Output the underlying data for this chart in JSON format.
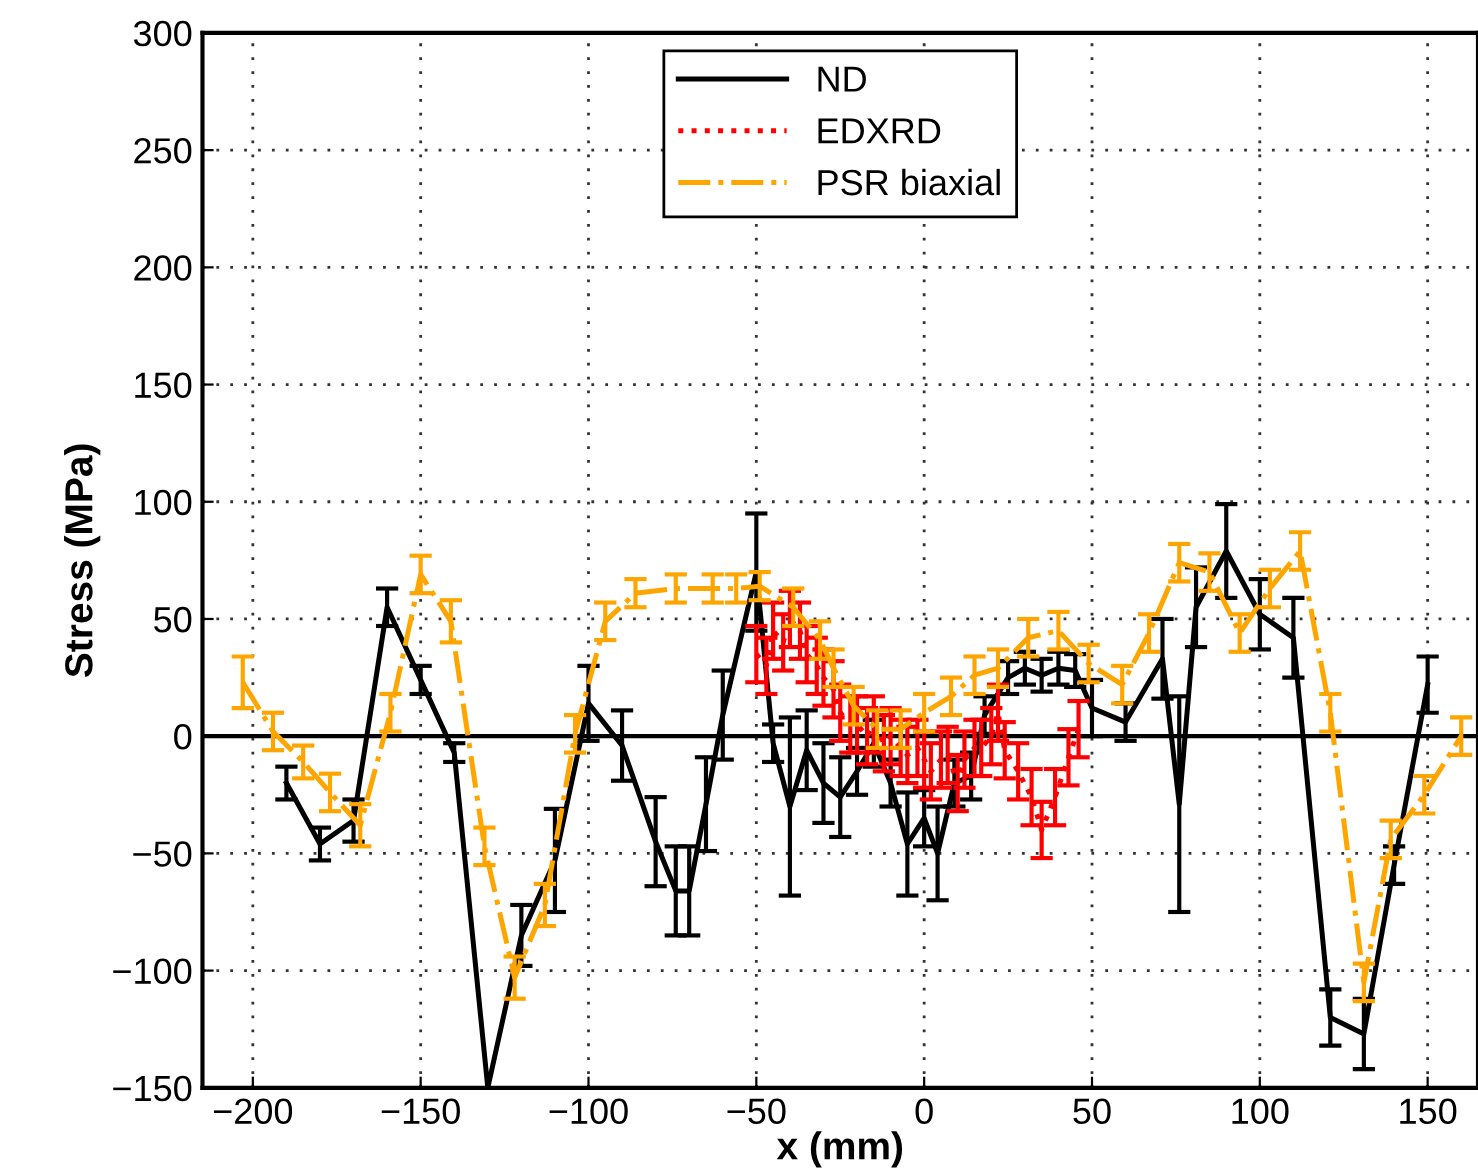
{
  "chart_data": {
    "type": "line",
    "xlabel": "x (mm)",
    "ylabel": "Stress (MPa)",
    "xlim": [
      -215,
      165
    ],
    "xticks": [
      -200,
      -150,
      -100,
      -50,
      0,
      50,
      100,
      150
    ],
    "ylim": [
      -150,
      300
    ],
    "yticks": [
      -150,
      -100,
      -50,
      0,
      50,
      100,
      150,
      200,
      250,
      300
    ],
    "grid": true,
    "legend": "top",
    "marker": "none",
    "ref_lines": [
      {
        "axis": "y",
        "value": 0,
        "color": "#000000",
        "line_style": "solid"
      }
    ],
    "series": [
      {
        "name": "ND",
        "color": "#000000",
        "line_style": "solid",
        "x": [
          -190,
          -180,
          -170,
          -160,
          -150,
          -140,
          -130,
          -120,
          -110,
          -100,
          -90,
          -80,
          -74,
          -70,
          -65,
          -60,
          -50,
          -45,
          -40,
          -35,
          -30,
          -25,
          -20,
          -15,
          -10,
          -5,
          0,
          4,
          9,
          14,
          18,
          25,
          30,
          35,
          40,
          45,
          50,
          60,
          71,
          76,
          81,
          90,
          100,
          110,
          121,
          131,
          140,
          150
        ],
        "values": [
          -20,
          -46,
          -36,
          55,
          24,
          -7,
          -150,
          -85,
          -53,
          14,
          -4,
          -45,
          -66,
          -66,
          -29,
          9,
          70,
          -3,
          -30,
          -6,
          -20,
          -26,
          -15,
          -3,
          -20,
          -46,
          -35,
          -50,
          -20,
          -17,
          9,
          25,
          29,
          26,
          29,
          28,
          12,
          6,
          33,
          -29,
          55,
          79,
          52,
          42,
          -120,
          -127,
          -55,
          22
        ],
        "errors": [
          7,
          7,
          9,
          8,
          6,
          4,
          null,
          13,
          22,
          16,
          15,
          19,
          19,
          19,
          20,
          19,
          25,
          8,
          38,
          17,
          17,
          17,
          10,
          10,
          10,
          22,
          12,
          20,
          10,
          10,
          8,
          7,
          7,
          7,
          7,
          7,
          12,
          8,
          17,
          46,
          17,
          20,
          15,
          17,
          12,
          15,
          8,
          12
        ]
      },
      {
        "name": "EDXRD",
        "color": "#ff0000",
        "line_style": "dotted",
        "x": [
          -50,
          -47,
          -45,
          -42,
          -40,
          -37,
          -35,
          -32,
          -30,
          -27,
          -25,
          -22,
          -20,
          -17,
          -15,
          -12,
          -10,
          -7,
          -5,
          -2,
          0,
          2,
          5,
          7,
          10,
          12,
          15,
          17,
          20,
          22,
          24,
          28,
          32,
          35,
          39,
          43,
          46
        ],
        "values": [
          35,
          30,
          45,
          40,
          50,
          45,
          35,
          30,
          25,
          20,
          10,
          5,
          5,
          0,
          5,
          -3,
          0,
          -5,
          -8,
          -5,
          -10,
          -15,
          -10,
          -8,
          -20,
          -10,
          -5,
          -5,
          0,
          10,
          -6,
          -15,
          -26,
          -40,
          -26,
          -9,
          3
        ],
        "errors": [
          12,
          12,
          12,
          12,
          12,
          12,
          12,
          12,
          12,
          12,
          12,
          12,
          12,
          12,
          12,
          12,
          12,
          12,
          12,
          12,
          12,
          12,
          12,
          12,
          12,
          12,
          12,
          12,
          12,
          12,
          12,
          12,
          12,
          12,
          12,
          12,
          12
        ]
      },
      {
        "name": "PSR biaxial",
        "color": "#ffa500",
        "line_style": "dashdot",
        "x": [
          -203,
          -194,
          -185,
          -177,
          -168,
          -159,
          -150,
          -141,
          -131,
          -122,
          -113,
          -104,
          -95,
          -86,
          -74,
          -63,
          -56,
          -49,
          -39,
          -31,
          -27,
          -21,
          -14,
          -7,
          0,
          8,
          15,
          22,
          31,
          40,
          49,
          59,
          67,
          76,
          85,
          94,
          103,
          112,
          121,
          131,
          139,
          149,
          160
        ],
        "values": [
          23,
          2,
          -11,
          -24,
          -38,
          10,
          69,
          49,
          -47,
          -103,
          -72,
          1,
          49,
          61,
          63,
          63,
          63,
          64,
          55,
          41,
          29,
          13,
          3,
          3,
          10,
          17,
          26,
          29,
          42,
          45,
          31,
          22,
          44,
          74,
          70,
          44,
          63,
          79,
          10,
          -105,
          -44,
          -25,
          0
        ],
        "errors": [
          11,
          8,
          7,
          8,
          9,
          8,
          8,
          9,
          8,
          9,
          9,
          8,
          8,
          6,
          6,
          6,
          6,
          6,
          8,
          8,
          8,
          8,
          8,
          8,
          8,
          8,
          8,
          8,
          8,
          8,
          8,
          8,
          8,
          8,
          8,
          8,
          8,
          8,
          8,
          8,
          8,
          8,
          8
        ]
      }
    ]
  }
}
